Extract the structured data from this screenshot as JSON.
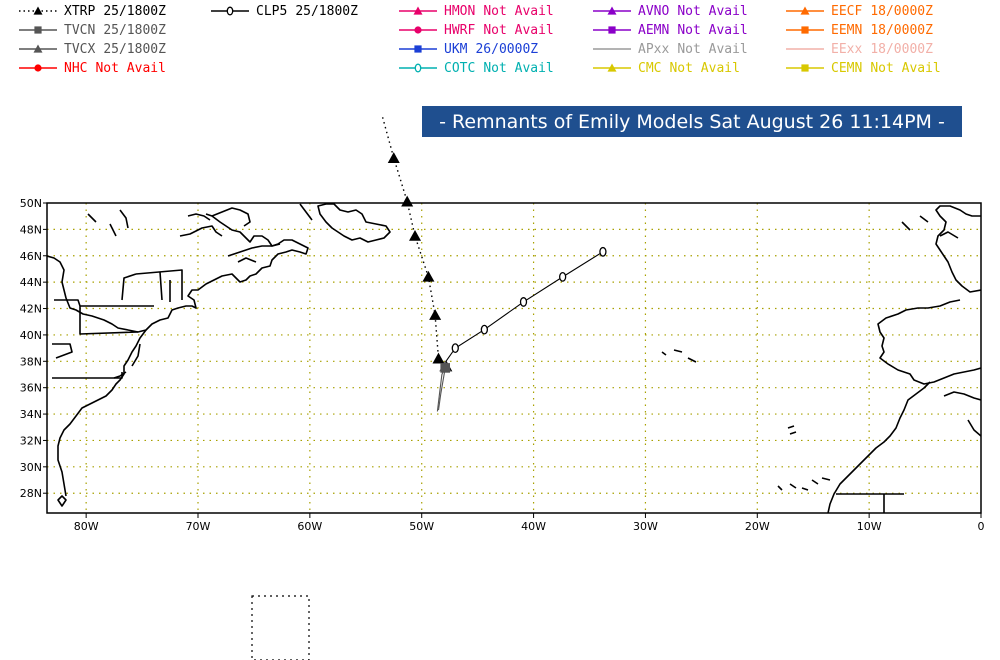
{
  "title": "- Remnants of Emily Models Sat August 26 11:14PM -",
  "legend": [
    {
      "id": "xtrp",
      "name": "XTRP",
      "time": "25/1800Z",
      "color": "#000000",
      "marker": "triangle",
      "line": "dotted"
    },
    {
      "id": "clp5",
      "name": "CLP5",
      "time": "25/1800Z",
      "color": "#000000",
      "marker": "circle-open",
      "line": "solid"
    },
    {
      "id": "hmon",
      "name": "HMON",
      "time": "Not Avail",
      "color": "#e8006a",
      "marker": "triangle",
      "line": "solid"
    },
    {
      "id": "avno",
      "name": "AVNO",
      "time": "Not Avail",
      "color": "#8a00c8",
      "marker": "triangle",
      "line": "solid"
    },
    {
      "id": "eecf",
      "name": "EECF",
      "time": "18/0000Z",
      "color": "#ff6a00",
      "marker": "triangle",
      "line": "solid"
    },
    {
      "id": "tvcn",
      "name": "TVCN",
      "time": "25/1800Z",
      "color": "#555555",
      "marker": "square",
      "line": "solid"
    },
    {
      "id": "hwrf",
      "name": "HWRF",
      "time": "Not Avail",
      "color": "#e8006a",
      "marker": "circle",
      "line": "solid"
    },
    {
      "id": "aemn",
      "name": "AEMN",
      "time": "Not Avail",
      "color": "#8a00c8",
      "marker": "square",
      "line": "solid"
    },
    {
      "id": "eemn",
      "name": "EEMN",
      "time": "18/0000Z",
      "color": "#ff6a00",
      "marker": "square",
      "line": "solid"
    },
    {
      "id": "tvcx",
      "name": "TVCX",
      "time": "25/1800Z",
      "color": "#555555",
      "marker": "triangle",
      "line": "solid"
    },
    {
      "id": "ukm",
      "name": "UKM",
      "time": "26/0000Z",
      "color": "#1b3fd6",
      "marker": "square",
      "line": "solid"
    },
    {
      "id": "apxx",
      "name": "APxx",
      "time": "Not Avail",
      "color": "#9a9a9a",
      "marker": "none",
      "line": "solid"
    },
    {
      "id": "eexx",
      "name": "EExx",
      "time": "18/0000Z",
      "color": "#f2b0a8",
      "marker": "none",
      "line": "solid"
    },
    {
      "id": "nhc",
      "name": "NHC",
      "time": "Not Avail",
      "color": "#ff0000",
      "marker": "circle",
      "line": "solid"
    },
    {
      "id": "cotc",
      "name": "COTC",
      "time": "Not Avail",
      "color": "#00b0b0",
      "marker": "circle-open",
      "line": "solid"
    },
    {
      "id": "cmc",
      "name": "CMC",
      "time": "Not Avail",
      "color": "#d8c800",
      "marker": "triangle",
      "line": "solid"
    },
    {
      "id": "cemn",
      "name": "CEMN",
      "time": "Not Avail",
      "color": "#d8c800",
      "marker": "square",
      "line": "solid"
    }
  ],
  "map": {
    "lon_ticks": [
      "80W",
      "70W",
      "60W",
      "50W",
      "40W",
      "30W",
      "20W",
      "10W",
      "0"
    ],
    "lat_ticks": [
      "50N",
      "48N",
      "46N",
      "44N",
      "42N",
      "40N",
      "38N",
      "36N",
      "34N",
      "32N",
      "30N",
      "28N"
    ],
    "lon_range": [
      -83.5,
      0
    ],
    "lat_range": [
      26.5,
      50
    ],
    "tracks": {
      "xtrp": [
        [
          -53.5,
          56.5
        ],
        [
          -52.5,
          53.4
        ],
        [
          -51.3,
          50.1
        ],
        [
          -50.6,
          47.5
        ],
        [
          -49.4,
          44.4
        ],
        [
          -48.8,
          41.5
        ],
        [
          -48.5,
          38.2
        ],
        [
          -47.8,
          37.6
        ]
      ],
      "clp5": [
        [
          -48.0,
          37.8
        ],
        [
          -47.0,
          39.0
        ],
        [
          -44.4,
          40.4
        ],
        [
          -40.9,
          42.5
        ],
        [
          -37.4,
          44.4
        ],
        [
          -33.8,
          46.3
        ]
      ],
      "tvcn": [
        [
          -48.5,
          34.3
        ],
        [
          -48.3,
          35.5
        ],
        [
          -48.0,
          37.0
        ],
        [
          -47.9,
          37.5
        ]
      ],
      "tvcx": [
        [
          -48.6,
          34.2
        ],
        [
          -48.4,
          35.6
        ],
        [
          -48.2,
          37.0
        ],
        [
          -47.9,
          37.6
        ]
      ]
    }
  }
}
